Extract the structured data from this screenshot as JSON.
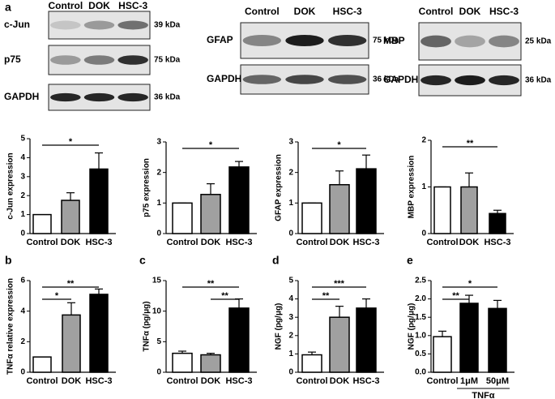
{
  "panel_letters": [
    "a",
    "b",
    "c",
    "d",
    "e"
  ],
  "blots": [
    {
      "lanes": [
        "Control",
        "DOK",
        "HSC-3"
      ],
      "rows": [
        {
          "name": "c-Jun",
          "size": "39 kDa"
        },
        {
          "name": "p75",
          "size": "75 kDa"
        },
        {
          "name": "GAPDH",
          "size": "36 kDa"
        }
      ]
    },
    {
      "lanes": [
        "Control",
        "DOK",
        "HSC-3"
      ],
      "rows": [
        {
          "name": "GFAP",
          "size": "75 kDa"
        },
        {
          "name": "GAPDH",
          "size": "36 kDa"
        }
      ]
    },
    {
      "lanes": [
        "Control",
        "DOK",
        "HSC-3"
      ],
      "rows": [
        {
          "name": "MBP",
          "size": "25 kDa"
        },
        {
          "name": "GAPDH",
          "size": "36 kDa"
        }
      ]
    }
  ],
  "chart_data": [
    {
      "type": "bar",
      "y_label": "c-Jun expression",
      "categories": [
        "Control",
        "DOK",
        "HSC-3"
      ],
      "values": [
        1,
        1.75,
        3.4
      ],
      "errors": [
        0,
        0.4,
        0.85
      ],
      "colors": [
        "#ffffff",
        "#a0a0a0",
        "#000000"
      ],
      "ylim": [
        0,
        5
      ],
      "yticks": [
        0,
        1,
        2,
        3,
        4,
        5
      ],
      "significance": [
        {
          "label": "*",
          "between": [
            "Control",
            "HSC-3"
          ]
        }
      ]
    },
    {
      "type": "bar",
      "y_label": "p75 expression",
      "categories": [
        "Control",
        "DOK",
        "HSC-3"
      ],
      "values": [
        1,
        1.28,
        2.18
      ],
      "errors": [
        0,
        0.35,
        0.18
      ],
      "colors": [
        "#ffffff",
        "#a0a0a0",
        "#000000"
      ],
      "ylim": [
        0,
        3
      ],
      "yticks": [
        0,
        1,
        2,
        3
      ],
      "significance": [
        {
          "label": "*",
          "between": [
            "Control",
            "HSC-3"
          ]
        }
      ]
    },
    {
      "type": "bar",
      "y_label": "GFAP expression",
      "categories": [
        "Control",
        "DOK",
        "HSC-3"
      ],
      "values": [
        1,
        1.6,
        2.12
      ],
      "errors": [
        0,
        0.45,
        0.45
      ],
      "colors": [
        "#ffffff",
        "#a0a0a0",
        "#000000"
      ],
      "ylim": [
        0,
        3
      ],
      "yticks": [
        0,
        1,
        2,
        3
      ],
      "significance": [
        {
          "label": "*",
          "between": [
            "Control",
            "HSC-3"
          ]
        }
      ]
    },
    {
      "type": "bar",
      "y_label": "MBP expression",
      "categories": [
        "Control",
        "DOK",
        "HSC-3"
      ],
      "values": [
        1,
        1.0,
        0.43
      ],
      "errors": [
        0,
        0.3,
        0.07
      ],
      "colors": [
        "#ffffff",
        "#a0a0a0",
        "#000000"
      ],
      "ylim": [
        0,
        2
      ],
      "yticks": [
        0,
        1,
        2
      ],
      "significance": [
        {
          "label": "**",
          "between": [
            "Control",
            "HSC-3"
          ]
        }
      ]
    },
    {
      "type": "bar",
      "y_label": "TNFα relative expression",
      "categories": [
        "Control",
        "DOK",
        "HSC-3"
      ],
      "values": [
        1,
        3.75,
        5.1
      ],
      "errors": [
        0,
        0.8,
        0.35
      ],
      "colors": [
        "#ffffff",
        "#a0a0a0",
        "#000000"
      ],
      "ylim": [
        0,
        6
      ],
      "yticks": [
        0,
        2,
        4,
        6
      ],
      "significance": [
        {
          "label": "**",
          "between": [
            "Control",
            "HSC-3"
          ]
        },
        {
          "label": "*",
          "between": [
            "Control",
            "DOK"
          ]
        }
      ]
    },
    {
      "type": "bar",
      "y_label": "TNFα (pg/μg)",
      "categories": [
        "Control",
        "DOK",
        "HSC-3"
      ],
      "values": [
        3.1,
        2.85,
        10.5
      ],
      "errors": [
        0.35,
        0.25,
        1.5
      ],
      "colors": [
        "#ffffff",
        "#a0a0a0",
        "#000000"
      ],
      "ylim": [
        0,
        15
      ],
      "yticks": [
        0,
        5,
        10,
        15
      ],
      "significance": [
        {
          "label": "**",
          "between": [
            "Control",
            "HSC-3"
          ]
        },
        {
          "label": "**",
          "between": [
            "DOK",
            "HSC-3"
          ]
        }
      ]
    },
    {
      "type": "bar",
      "y_label": "NGF (pg/μg)",
      "categories": [
        "Control",
        "DOK",
        "HSC-3"
      ],
      "values": [
        0.95,
        3.0,
        3.5
      ],
      "errors": [
        0.15,
        0.6,
        0.5
      ],
      "colors": [
        "#ffffff",
        "#a0a0a0",
        "#000000"
      ],
      "ylim": [
        0,
        5
      ],
      "yticks": [
        0,
        1,
        2,
        3,
        4,
        5
      ],
      "significance": [
        {
          "label": "***",
          "between": [
            "Control",
            "HSC-3"
          ]
        },
        {
          "label": "**",
          "between": [
            "Control",
            "DOK"
          ]
        }
      ]
    },
    {
      "type": "bar",
      "y_label": "NGF (pg/μg)",
      "categories": [
        "Control",
        "1μM",
        "50μM"
      ],
      "group_label": "TNFα",
      "values": [
        0.97,
        1.88,
        1.74
      ],
      "errors": [
        0.15,
        0.22,
        0.22
      ],
      "colors": [
        "#ffffff",
        "#000000",
        "#000000"
      ],
      "ylim": [
        0,
        2.5
      ],
      "yticks": [
        {
          "value": 0,
          "label": "0.0"
        },
        0.5,
        {
          "value": 1,
          "label": "1.0"
        },
        1.5,
        {
          "value": 2,
          "label": "2.0"
        },
        2.5
      ],
      "significance": [
        {
          "label": "*",
          "between": [
            "Control",
            "50μM"
          ]
        },
        {
          "label": "**",
          "between": [
            "Control",
            "1μM"
          ]
        }
      ]
    }
  ]
}
